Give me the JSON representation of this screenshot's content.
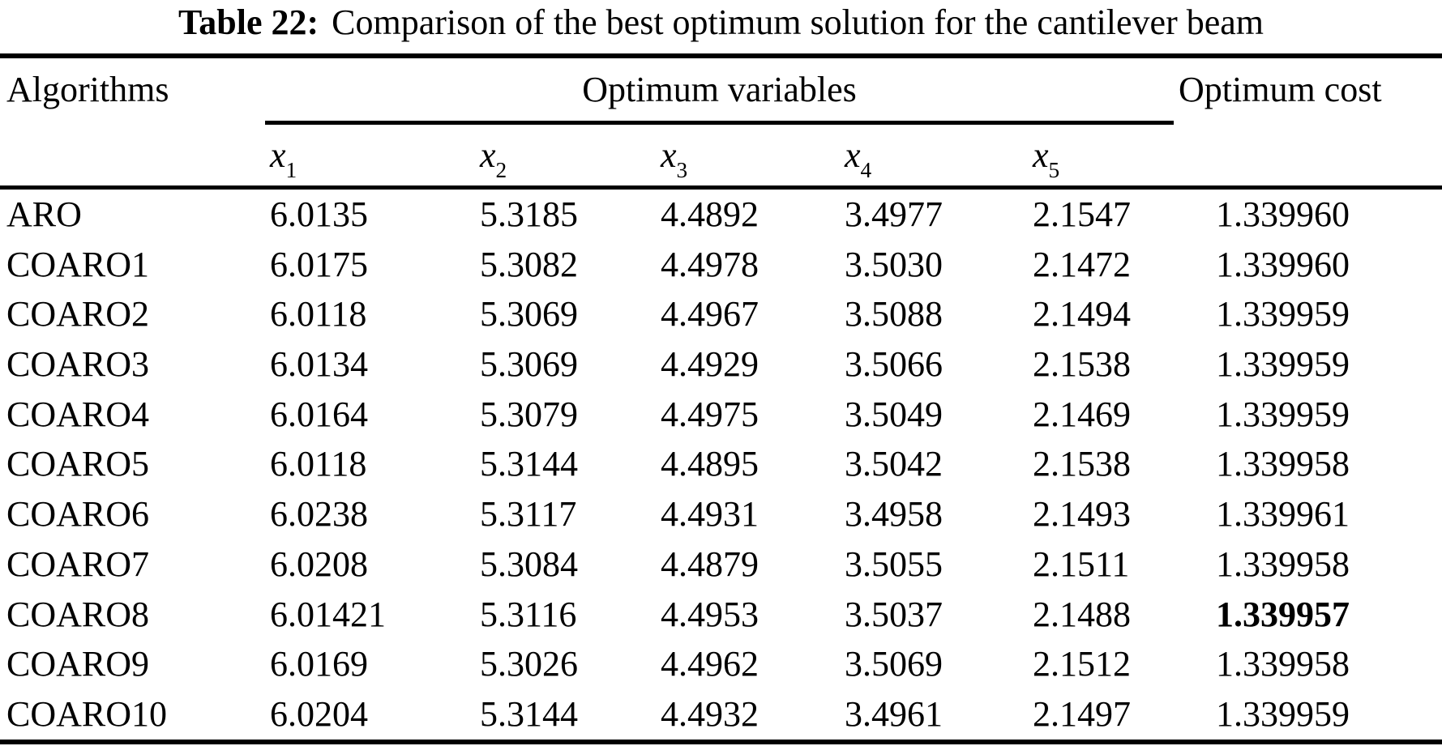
{
  "title": {
    "label": "Table 22:",
    "text": "Comparison of the best optimum solution for the cantilever beam"
  },
  "table": {
    "col_headers": {
      "algorithms": "Algorithms",
      "optimum_variables": "Optimum variables",
      "optimum_cost": "Optimum cost"
    },
    "sub_headers": [
      {
        "base": "x",
        "sub": "1"
      },
      {
        "base": "x",
        "sub": "2"
      },
      {
        "base": "x",
        "sub": "3"
      },
      {
        "base": "x",
        "sub": "4"
      },
      {
        "base": "x",
        "sub": "5"
      }
    ],
    "rows": [
      {
        "algorithm": "ARO",
        "x1": "6.0135",
        "x2": "5.3185",
        "x3": "4.4892",
        "x4": "3.4977",
        "x5": "2.1547",
        "cost": "1.339960",
        "cost_bold": false
      },
      {
        "algorithm": "COARO1",
        "x1": "6.0175",
        "x2": "5.3082",
        "x3": "4.4978",
        "x4": "3.5030",
        "x5": "2.1472",
        "cost": "1.339960",
        "cost_bold": false
      },
      {
        "algorithm": "COARO2",
        "x1": "6.0118",
        "x2": "5.3069",
        "x3": "4.4967",
        "x4": "3.5088",
        "x5": "2.1494",
        "cost": "1.339959",
        "cost_bold": false
      },
      {
        "algorithm": "COARO3",
        "x1": "6.0134",
        "x2": "5.3069",
        "x3": "4.4929",
        "x4": "3.5066",
        "x5": "2.1538",
        "cost": "1.339959",
        "cost_bold": false
      },
      {
        "algorithm": "COARO4",
        "x1": "6.0164",
        "x2": "5.3079",
        "x3": "4.4975",
        "x4": "3.5049",
        "x5": "2.1469",
        "cost": "1.339959",
        "cost_bold": false
      },
      {
        "algorithm": "COARO5",
        "x1": "6.0118",
        "x2": "5.3144",
        "x3": "4.4895",
        "x4": "3.5042",
        "x5": "2.1538",
        "cost": "1.339958",
        "cost_bold": false
      },
      {
        "algorithm": "COARO6",
        "x1": "6.0238",
        "x2": "5.3117",
        "x3": "4.4931",
        "x4": "3.4958",
        "x5": "2.1493",
        "cost": "1.339961",
        "cost_bold": false
      },
      {
        "algorithm": "COARO7",
        "x1": "6.0208",
        "x2": "5.3084",
        "x3": "4.4879",
        "x4": "3.5055",
        "x5": "2.1511",
        "cost": "1.339958",
        "cost_bold": false
      },
      {
        "algorithm": "COARO8",
        "x1": "6.01421",
        "x2": "5.3116",
        "x3": "4.4953",
        "x4": "3.5037",
        "x5": "2.1488",
        "cost": "1.339957",
        "cost_bold": true
      },
      {
        "algorithm": "COARO9",
        "x1": "6.0169",
        "x2": "5.3026",
        "x3": "4.4962",
        "x4": "3.5069",
        "x5": "2.1512",
        "cost": "1.339958",
        "cost_bold": false
      },
      {
        "algorithm": "COARO10",
        "x1": "6.0204",
        "x2": "5.3144",
        "x3": "4.4932",
        "x4": "3.4961",
        "x5": "2.1497",
        "cost": "1.339959",
        "cost_bold": false
      }
    ]
  }
}
